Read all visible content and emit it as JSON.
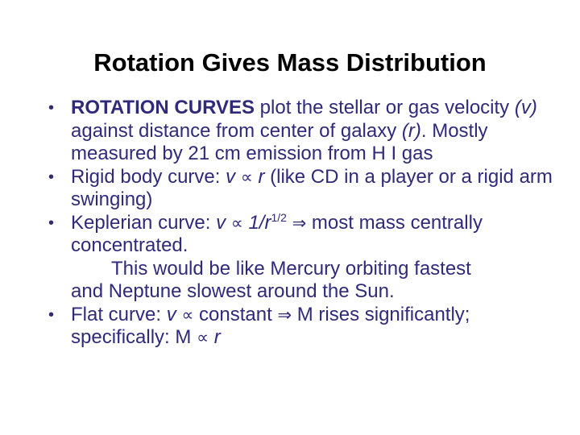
{
  "slide": {
    "title": "Rotation Gives Mass Distribution",
    "bullet_glyph": "•",
    "bullets": [
      {
        "bold_lead": "ROTATION CURVES",
        "t1": " plot the stellar or gas velocity ",
        "v": "(v)",
        "t2": "  against distance from center of galaxy ",
        "r": "(r)",
        "t3": ".  Mostly measured by 21 cm emission from H I gas"
      },
      {
        "t1": "Rigid body curve: ",
        "v": "v",
        "prop": "∝",
        "r": "r",
        "t2": " (like CD in a player or a rigid arm swinging)"
      },
      {
        "t1": "Keplerian curve: ",
        "v": "v",
        "prop": "∝",
        "frac": "1/r",
        "exp": "1/2",
        "implies": "⇒",
        "t2": " most mass centrally concentrated.",
        "t3": "This would be like Mercury orbiting fastest",
        "t4": "and Neptune slowest around the Sun."
      },
      {
        "t1": "Flat curve: ",
        "v": "v",
        "prop": "∝",
        "t2": " constant ",
        "implies": "⇒",
        "t3": " M rises significantly; specifically: M ",
        "prop2": "∝",
        "r": "r"
      }
    ]
  },
  "colors": {
    "title": "#000000",
    "body": "#2f2a7a",
    "background": "#ffffff"
  }
}
